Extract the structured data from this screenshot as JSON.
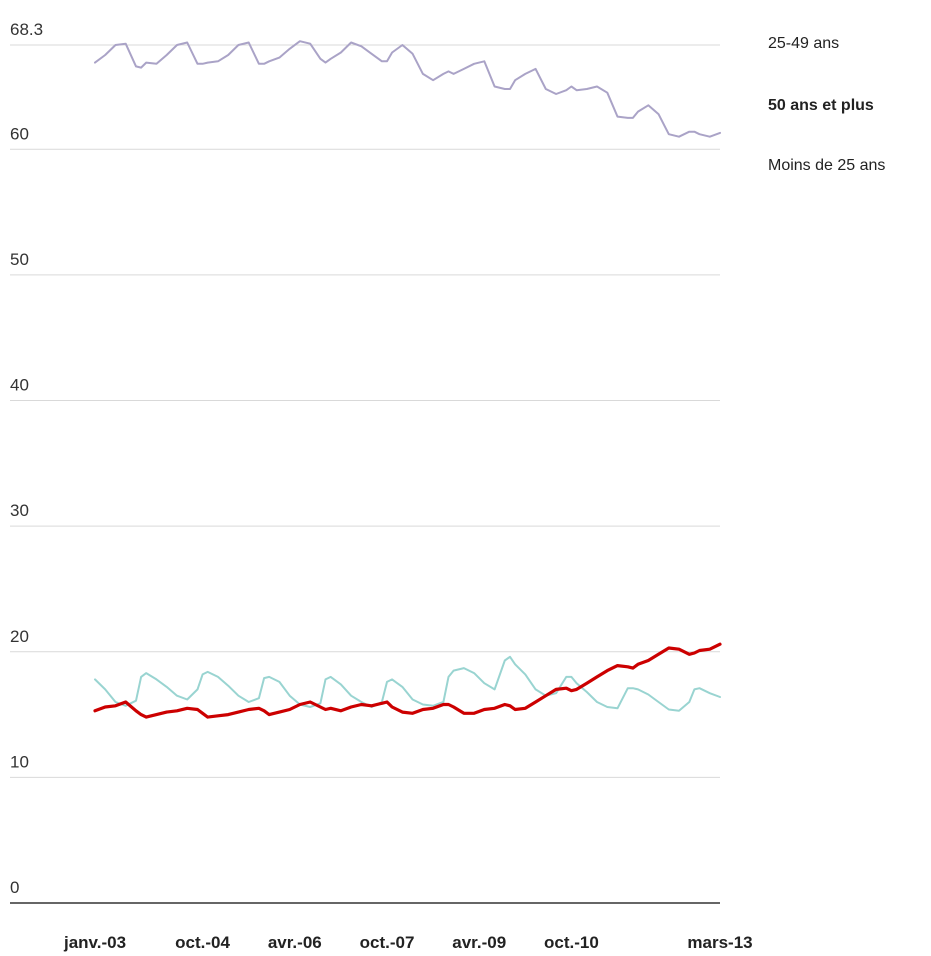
{
  "chart_data": {
    "type": "line",
    "title": "",
    "xlabel": "",
    "ylabel": "",
    "ylim": [
      0,
      68.3
    ],
    "y_ticks": [
      0,
      10,
      20,
      30,
      40,
      50,
      60,
      68.3
    ],
    "y_tick_labels": [
      "0",
      "10",
      "20",
      "30",
      "40",
      "50",
      "60",
      "68.3"
    ],
    "grid": true,
    "legend_position": "top-right",
    "x_tick_labels": [
      "janv.-03",
      "oct.-04",
      "avr.-06",
      "oct.-07",
      "avr.-09",
      "oct.-10",
      "mars-13"
    ],
    "x_tick_month_index": [
      0,
      21,
      39,
      57,
      75,
      93,
      122
    ],
    "x_start": "janv.-03",
    "x_end": "mars-13",
    "series": [
      {
        "name": "25-49 ans",
        "color": "#aaa3c7",
        "bold": false,
        "x": [
          0,
          2,
          4,
          6,
          8,
          9,
          10,
          12,
          14,
          16,
          18,
          20,
          21,
          22,
          24,
          26,
          28,
          30,
          32,
          33,
          34,
          36,
          38,
          40,
          42,
          44,
          45,
          46,
          48,
          50,
          52,
          54,
          56,
          57,
          58,
          60,
          62,
          64,
          66,
          68,
          69,
          70,
          72,
          74,
          76,
          78,
          80,
          81,
          82,
          84,
          86,
          88,
          90,
          92,
          93,
          94,
          96,
          98,
          100,
          102,
          104,
          105,
          106,
          108,
          110,
          112,
          114,
          116,
          117,
          118,
          120,
          122
        ],
        "y": [
          66.9,
          67.5,
          68.3,
          68.4,
          66.6,
          66.5,
          66.9,
          66.8,
          67.5,
          68.3,
          68.5,
          66.8,
          66.8,
          66.9,
          67.0,
          67.5,
          68.3,
          68.5,
          66.8,
          66.8,
          67.0,
          67.3,
          68.0,
          68.6,
          68.4,
          67.2,
          66.9,
          67.2,
          67.7,
          68.5,
          68.2,
          67.6,
          67.0,
          67.0,
          67.7,
          68.3,
          67.6,
          66.0,
          65.5,
          66.0,
          66.2,
          66.0,
          66.4,
          66.8,
          67.0,
          65.0,
          64.8,
          64.8,
          65.5,
          66.0,
          66.4,
          64.8,
          64.4,
          64.7,
          65.0,
          64.7,
          64.8,
          65.0,
          64.5,
          62.6,
          62.5,
          62.5,
          63.0,
          63.5,
          62.8,
          61.2,
          61.0,
          61.4,
          61.4,
          61.2,
          61.0,
          61.3
        ]
      },
      {
        "name": "50 ans et plus",
        "color": "#cc0000",
        "bold": true,
        "x": [
          0,
          2,
          4,
          6,
          8,
          9,
          10,
          12,
          14,
          16,
          18,
          20,
          21,
          22,
          24,
          26,
          28,
          30,
          32,
          33,
          34,
          36,
          38,
          40,
          42,
          44,
          45,
          46,
          48,
          50,
          52,
          54,
          56,
          57,
          58,
          60,
          62,
          64,
          66,
          68,
          69,
          70,
          72,
          74,
          76,
          78,
          80,
          81,
          82,
          84,
          86,
          88,
          90,
          92,
          93,
          94,
          96,
          98,
          100,
          102,
          104,
          105,
          106,
          108,
          110,
          112,
          114,
          116,
          117,
          118,
          120,
          122
        ],
        "y": [
          15.3,
          15.6,
          15.7,
          16.0,
          15.3,
          15.0,
          14.8,
          15.0,
          15.2,
          15.3,
          15.5,
          15.4,
          15.1,
          14.8,
          14.9,
          15.0,
          15.2,
          15.4,
          15.5,
          15.3,
          15.0,
          15.2,
          15.4,
          15.8,
          16.0,
          15.6,
          15.4,
          15.5,
          15.3,
          15.6,
          15.8,
          15.7,
          15.9,
          16.0,
          15.6,
          15.2,
          15.1,
          15.4,
          15.5,
          15.8,
          15.8,
          15.6,
          15.1,
          15.1,
          15.4,
          15.5,
          15.8,
          15.7,
          15.4,
          15.5,
          16.0,
          16.5,
          17.0,
          17.1,
          16.9,
          17.0,
          17.5,
          18.0,
          18.5,
          18.9,
          18.8,
          18.7,
          19.0,
          19.3,
          19.8,
          20.3,
          20.2,
          19.8,
          19.9,
          20.1,
          20.2,
          20.6
        ]
      },
      {
        "name": "Moins de 25 ans",
        "color": "#99d4d1",
        "bold": false,
        "x": [
          0,
          2,
          4,
          6,
          8,
          9,
          10,
          12,
          14,
          16,
          18,
          20,
          21,
          22,
          24,
          26,
          28,
          30,
          32,
          33,
          34,
          36,
          38,
          40,
          42,
          44,
          45,
          46,
          48,
          50,
          52,
          54,
          56,
          57,
          58,
          60,
          62,
          64,
          66,
          68,
          69,
          70,
          72,
          74,
          76,
          78,
          80,
          81,
          82,
          84,
          86,
          88,
          90,
          92,
          93,
          94,
          96,
          98,
          100,
          102,
          104,
          105,
          106,
          108,
          110,
          112,
          114,
          116,
          117,
          118,
          120,
          122
        ],
        "y": [
          17.8,
          17.0,
          16.0,
          15.7,
          16.1,
          18.0,
          18.3,
          17.8,
          17.2,
          16.5,
          16.2,
          17.0,
          18.2,
          18.4,
          18.0,
          17.3,
          16.5,
          16.0,
          16.3,
          17.9,
          18.0,
          17.6,
          16.5,
          15.8,
          15.6,
          15.9,
          17.8,
          18.0,
          17.4,
          16.5,
          16.0,
          15.6,
          16.0,
          17.6,
          17.8,
          17.2,
          16.2,
          15.8,
          15.7,
          16.0,
          18.0,
          18.5,
          18.7,
          18.3,
          17.5,
          17.0,
          19.3,
          19.6,
          19.0,
          18.2,
          17.0,
          16.5,
          16.7,
          18.0,
          18.0,
          17.5,
          16.8,
          16.0,
          15.6,
          15.5,
          17.1,
          17.1,
          17.0,
          16.6,
          16.0,
          15.4,
          15.3,
          16.0,
          17.0,
          17.1,
          16.7,
          16.4
        ]
      }
    ]
  }
}
